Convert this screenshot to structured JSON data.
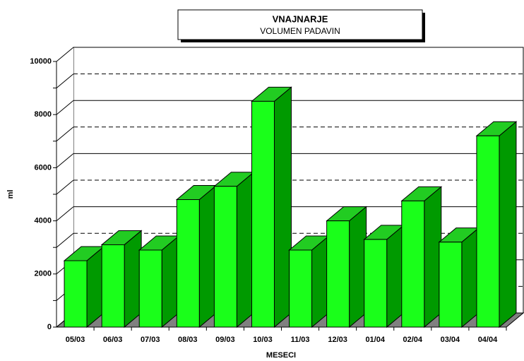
{
  "chart_data": {
    "type": "bar3d",
    "title": "VNAJNARJE",
    "subtitle": "VOLUMEN PADAVIN",
    "x_label": "MESECI",
    "y_label": "ml",
    "categories": [
      "05/03",
      "06/03",
      "07/03",
      "08/03",
      "09/03",
      "10/03",
      "11/03",
      "12/03",
      "01/04",
      "02/04",
      "03/04",
      "04/04"
    ],
    "values": [
      2500,
      3100,
      2900,
      4800,
      5300,
      8500,
      2900,
      4000,
      3300,
      4750,
      3200,
      7200
    ],
    "color": "#1aff1a",
    "ylim": [
      0,
      10000
    ],
    "yticks": [
      0,
      2000,
      4000,
      6000,
      8000,
      10000
    ],
    "minor_yticks": [
      1000,
      3000,
      5000,
      7000,
      9000
    ],
    "grid": true
  }
}
